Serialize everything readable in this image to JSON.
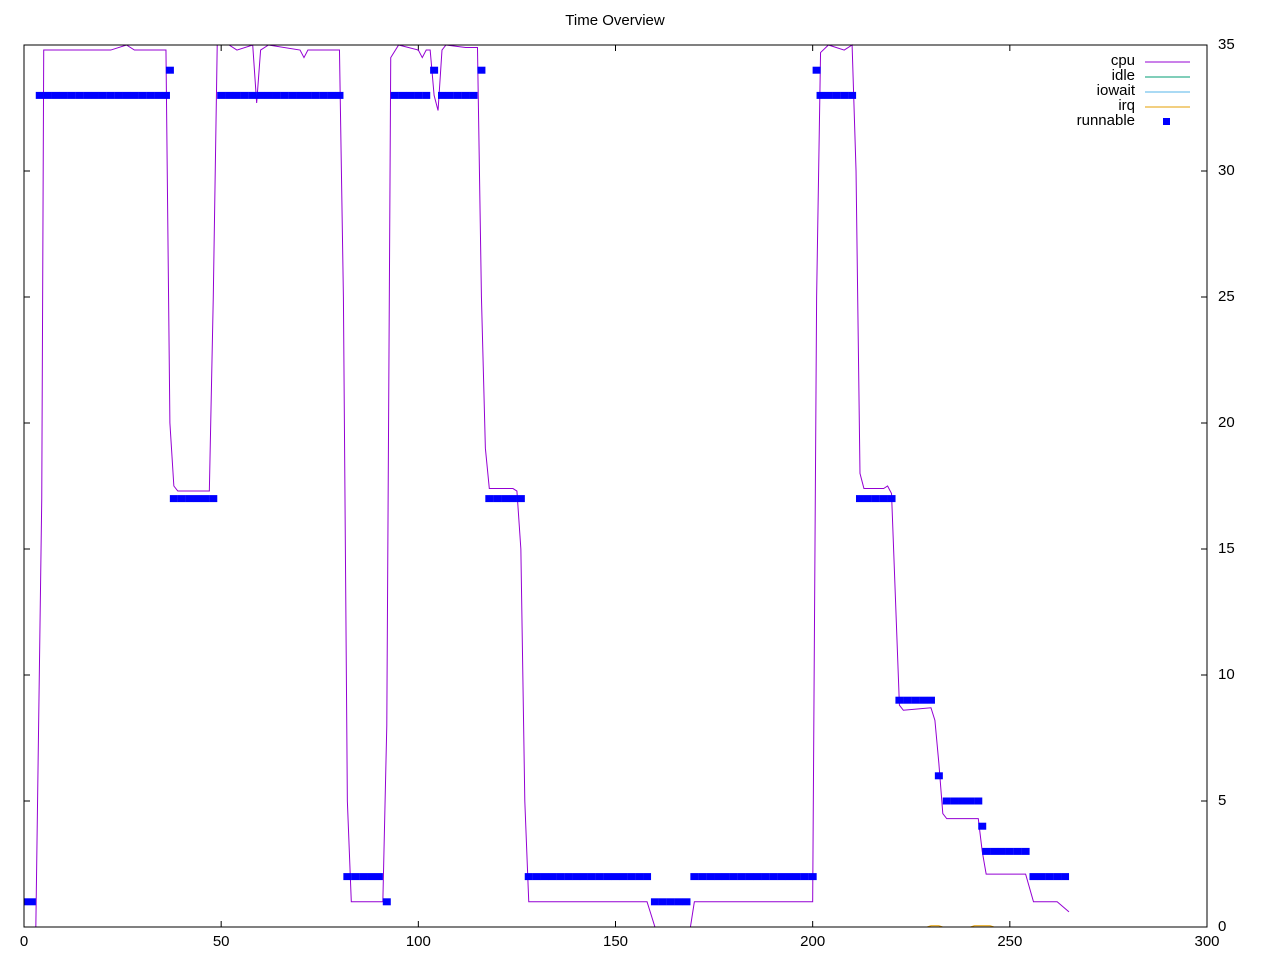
{
  "chart_data": {
    "type": "line",
    "title": "Time Overview",
    "xlim": [
      0,
      300
    ],
    "xticks": [
      0,
      50,
      100,
      150,
      200,
      250,
      300
    ],
    "ylim": [
      0,
      35
    ],
    "yticks": [
      0,
      5,
      10,
      15,
      20,
      25,
      30,
      35
    ],
    "y_axis_side": "right",
    "grid": false,
    "legend": "top-right",
    "series": [
      {
        "name": "cpu",
        "color": "#9400d3",
        "style": "line",
        "x": [
          0,
          3,
          4.5,
          5,
          14,
          22,
          26,
          28,
          36,
          37,
          38,
          39,
          47,
          48,
          49,
          52,
          54,
          58,
          59,
          60,
          62,
          70,
          71,
          72,
          80,
          81,
          82,
          83,
          91,
          92,
          93,
          95,
          100,
          101,
          102,
          103,
          104,
          105,
          106,
          107,
          112,
          115,
          116,
          117,
          118,
          124,
          125,
          126,
          127,
          128,
          150,
          158,
          159,
          160,
          169,
          170,
          200,
          201,
          202,
          204,
          208,
          210,
          211,
          212,
          213,
          218,
          219,
          220,
          221,
          222,
          223,
          230,
          231,
          232,
          233,
          234,
          242,
          243,
          244,
          254,
          256,
          262,
          265
        ],
        "values": [
          0,
          0,
          17,
          34.8,
          34.8,
          34.8,
          35,
          34.8,
          34.8,
          20,
          17.5,
          17.3,
          17.3,
          25,
          35,
          35,
          34.8,
          35,
          32.7,
          34.8,
          35,
          34.8,
          34.5,
          34.8,
          34.8,
          25,
          5,
          1,
          1,
          8,
          34.5,
          35,
          34.8,
          34.5,
          34.8,
          34.8,
          33,
          32.4,
          34.8,
          35,
          34.9,
          34.9,
          25,
          19,
          17.4,
          17.4,
          17.3,
          15,
          5,
          1,
          1,
          1,
          0.5,
          0,
          0,
          1,
          1,
          25,
          34.7,
          35,
          34.8,
          35,
          30,
          18,
          17.4,
          17.4,
          17.5,
          17.2,
          13,
          8.8,
          8.6,
          8.7,
          8.2,
          6.5,
          4.5,
          4.3,
          4.3,
          3,
          2.1,
          2.1,
          1,
          1,
          0.6
        ]
      },
      {
        "name": "idle",
        "color": "#009e73",
        "style": "line",
        "x": [
          0,
          265
        ],
        "values": [
          0,
          0
        ]
      },
      {
        "name": "iowait",
        "color": "#56b4e9",
        "style": "line",
        "x": [
          0,
          265
        ],
        "values": [
          0,
          0
        ]
      },
      {
        "name": "irq",
        "color": "#e69f00",
        "style": "line",
        "x": [
          0,
          229,
          230,
          232,
          233,
          240,
          241,
          245,
          246,
          265
        ],
        "values": [
          0,
          0,
          0.05,
          0.05,
          0,
          0,
          0.05,
          0.05,
          0,
          0
        ]
      },
      {
        "name": "runnable",
        "color": "#0000ff",
        "style": "points",
        "x": [
          0,
          2,
          4,
          6,
          8,
          10,
          12,
          14,
          16,
          18,
          20,
          22,
          24,
          26,
          28,
          30,
          32,
          34,
          36,
          37,
          38,
          40,
          42,
          44,
          46,
          48,
          50,
          52,
          54,
          56,
          58,
          60,
          62,
          64,
          66,
          68,
          70,
          72,
          74,
          76,
          78,
          80,
          82,
          84,
          86,
          88,
          90,
          92,
          94,
          96,
          98,
          100,
          102,
          104,
          106,
          108,
          110,
          112,
          114,
          116,
          118,
          120,
          122,
          124,
          126,
          128,
          130,
          132,
          134,
          136,
          138,
          140,
          142,
          144,
          146,
          148,
          150,
          152,
          154,
          156,
          158,
          160,
          162,
          164,
          166,
          168,
          170,
          172,
          174,
          176,
          178,
          180,
          182,
          184,
          186,
          188,
          190,
          192,
          194,
          196,
          198,
          200,
          201,
          202,
          204,
          206,
          208,
          210,
          212,
          214,
          216,
          218,
          220,
          222,
          224,
          226,
          228,
          230,
          232,
          234,
          236,
          238,
          240,
          242,
          243,
          244,
          246,
          248,
          250,
          252,
          254,
          256,
          258,
          260,
          262,
          264
        ],
        "values": [
          1,
          1,
          33,
          33,
          33,
          33,
          33,
          33,
          33,
          33,
          33,
          33,
          33,
          33,
          33,
          33,
          33,
          33,
          33,
          34,
          17,
          17,
          17,
          17,
          17,
          17,
          33,
          33,
          33,
          33,
          33,
          33,
          33,
          33,
          33,
          33,
          33,
          33,
          33,
          33,
          33,
          33,
          2,
          2,
          2,
          2,
          2,
          1,
          33,
          33,
          33,
          33,
          33,
          34,
          33,
          33,
          33,
          33,
          33,
          34,
          17,
          17,
          17,
          17,
          17,
          2,
          2,
          2,
          2,
          2,
          2,
          2,
          2,
          2,
          2,
          2,
          2,
          2,
          2,
          2,
          2,
          1,
          1,
          1,
          1,
          1,
          2,
          2,
          2,
          2,
          2,
          2,
          2,
          2,
          2,
          2,
          2,
          2,
          2,
          2,
          2,
          2,
          34,
          33,
          33,
          33,
          33,
          33,
          17,
          17,
          17,
          17,
          17,
          9,
          9,
          9,
          9,
          9,
          6,
          5,
          5,
          5,
          5,
          5,
          4,
          3,
          3,
          3,
          3,
          3,
          3,
          2,
          2,
          2,
          2,
          2
        ]
      }
    ]
  }
}
